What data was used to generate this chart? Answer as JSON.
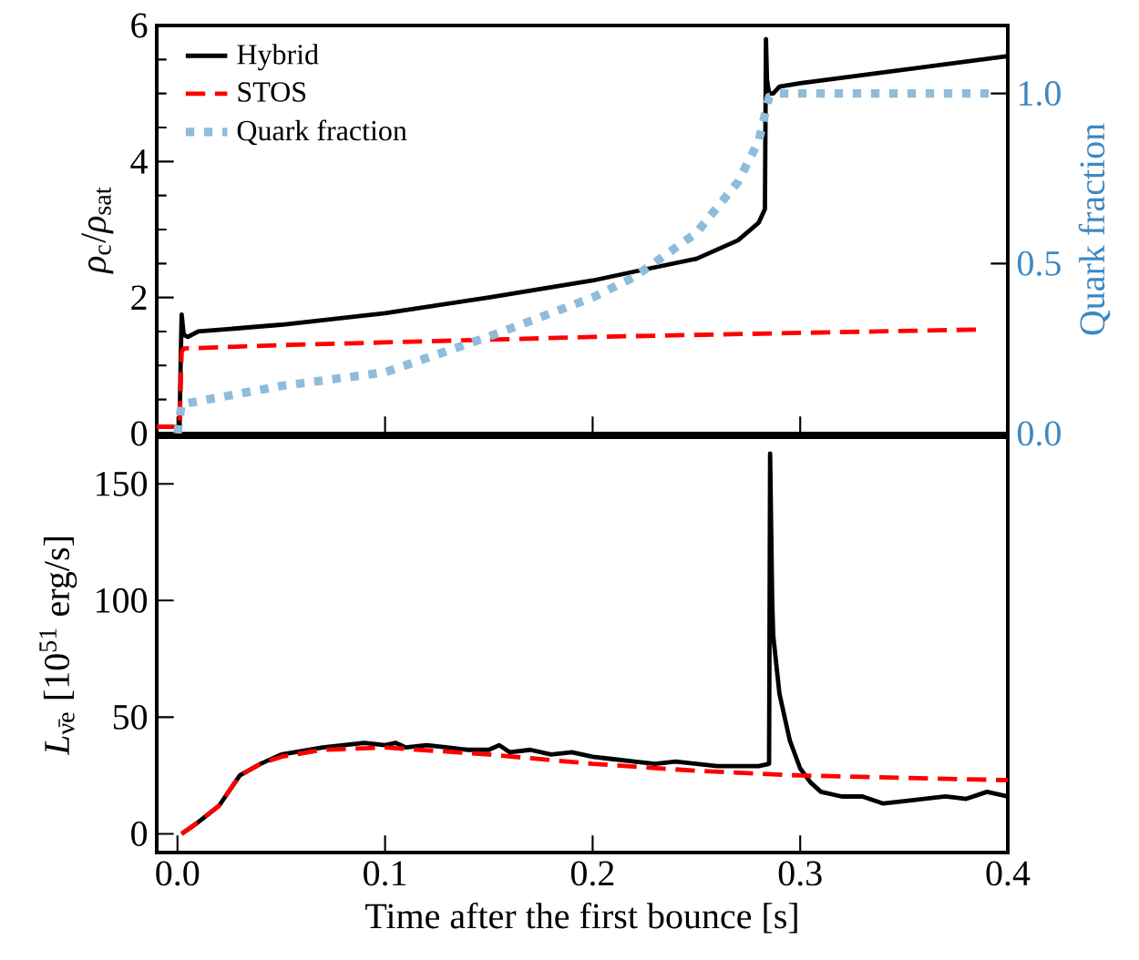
{
  "chart_data": [
    {
      "type": "line",
      "ylabel": "*ρ*$_{c}$/*ρ*$_{sat}$",
      "y2label": "Quark fraction",
      "xlim": [
        -0.01,
        0.4
      ],
      "xticks": [
        0,
        0.1,
        0.2,
        0.3,
        0.4
      ],
      "ylim": [
        0,
        6
      ],
      "yticks": [
        0,
        2,
        4,
        6
      ],
      "y2lim": [
        0,
        1.2
      ],
      "y2ticks": [
        {
          "value": 0,
          "label": "0.0"
        },
        0.5,
        {
          "value": 1,
          "label": "1.0"
        }
      ],
      "tick_labels": "y",
      "legend": "top left",
      "series": [
        {
          "name": "Hybrid",
          "color": "#000000",
          "line_style": "solid",
          "x": [
            -0.01,
            0.001,
            0.0015,
            0.002,
            0.003,
            0.005,
            0.01,
            0.05,
            0.1,
            0.15,
            0.2,
            0.22,
            0.25,
            0.27,
            0.28,
            0.283,
            0.2835,
            0.284,
            0.285,
            0.287,
            0.29,
            0.3,
            0.35,
            0.4
          ],
          "values": [
            0.1,
            0.1,
            1.0,
            1.75,
            1.45,
            1.42,
            1.5,
            1.6,
            1.77,
            2.0,
            2.25,
            2.38,
            2.57,
            2.84,
            3.1,
            3.3,
            5.8,
            5.2,
            5.0,
            5.0,
            5.1,
            5.15,
            5.35,
            5.55
          ]
        },
        {
          "name": "STOS",
          "color": "#ff0000",
          "line_style": "dashed",
          "x": [
            -0.01,
            0.001,
            0.002,
            0.003,
            0.05,
            0.1,
            0.2,
            0.3,
            0.387
          ],
          "values": [
            0.1,
            0.1,
            1.2,
            1.25,
            1.3,
            1.34,
            1.42,
            1.48,
            1.53
          ]
        },
        {
          "name": "Quark fraction",
          "color": "#8fbcdb",
          "line_style": "dotted",
          "axis": "y2",
          "x": [
            0.0,
            0.002,
            0.05,
            0.1,
            0.15,
            0.2,
            0.22,
            0.25,
            0.27,
            0.28,
            0.285,
            0.29,
            0.394
          ],
          "values": [
            0.0,
            0.086,
            0.14,
            0.18,
            0.285,
            0.4,
            0.46,
            0.59,
            0.74,
            0.86,
            0.99,
            1.0,
            1.0
          ]
        }
      ]
    },
    {
      "type": "line",
      "xlabel": "Time after the first bounce [s]",
      "ylabel": "*L*$_{ν̄e}$ [10$^{51}$ erg/s]",
      "xlim": [
        -0.01,
        0.4
      ],
      "xticks": [
        {
          "value": 0,
          "label": "0.0"
        },
        0.1,
        0.2,
        0.3,
        0.4
      ],
      "ylim": [
        -8,
        170
      ],
      "yticks": [
        0,
        50,
        100,
        150
      ],
      "series": [
        {
          "color": "#000000",
          "line_style": "solid",
          "x": [
            0.002,
            0.01,
            0.02,
            0.03,
            0.04,
            0.05,
            0.07,
            0.09,
            0.1,
            0.105,
            0.11,
            0.12,
            0.13,
            0.14,
            0.15,
            0.155,
            0.16,
            0.17,
            0.18,
            0.19,
            0.2,
            0.21,
            0.22,
            0.23,
            0.24,
            0.25,
            0.26,
            0.27,
            0.28,
            0.285,
            0.2855,
            0.2865,
            0.287,
            0.29,
            0.295,
            0.3,
            0.305,
            0.31,
            0.32,
            0.33,
            0.34,
            0.35,
            0.36,
            0.37,
            0.38,
            0.39,
            0.4
          ],
          "values": [
            0,
            5,
            12,
            25,
            30,
            34,
            37,
            39,
            38,
            39,
            37,
            38,
            37,
            36,
            36,
            38,
            35,
            36,
            34,
            35,
            33,
            32,
            31,
            30,
            31,
            30,
            29,
            29,
            29,
            30,
            163,
            100,
            85,
            60,
            40,
            28,
            22,
            18,
            16,
            16,
            13,
            14,
            15,
            16,
            15,
            18,
            16
          ]
        },
        {
          "color": "#ff0000",
          "line_style": "dashed",
          "x": [
            0.002,
            0.01,
            0.02,
            0.03,
            0.04,
            0.05,
            0.07,
            0.1,
            0.15,
            0.2,
            0.25,
            0.3,
            0.35,
            0.4
          ],
          "values": [
            0,
            5,
            12,
            25,
            30,
            33,
            36,
            37,
            34,
            30,
            27,
            25,
            24,
            23
          ]
        }
      ]
    }
  ]
}
